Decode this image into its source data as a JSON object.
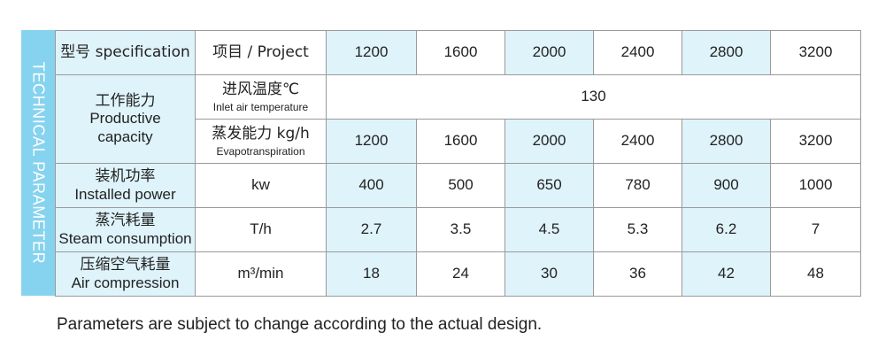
{
  "side_title": "TECHNICAL PARAMETER",
  "header": {
    "spec_label": "型号 specification",
    "project_label": "项目  / Project",
    "models": [
      "1200",
      "1600",
      "2000",
      "2400",
      "2800",
      "3200"
    ]
  },
  "productive": {
    "label_zh": "工作能力",
    "label_en_1": "Productive",
    "label_en_2": "capacity"
  },
  "inlet": {
    "label_zh": "进风温度℃",
    "label_en": "Inlet air temperature",
    "value": "130"
  },
  "evap": {
    "label_zh": "蒸发能力 kg/h",
    "label_en": "Evapotranspiration",
    "values": [
      "1200",
      "1600",
      "2000",
      "2400",
      "2800",
      "3200"
    ]
  },
  "rows": [
    {
      "label_zh": "装机功率",
      "label_en": "Installed power",
      "unit": "kw",
      "values": [
        "400",
        "500",
        "650",
        "780",
        "900",
        "1000"
      ]
    },
    {
      "label_zh": "蒸汽耗量",
      "label_en": "Steam consumption",
      "unit": "T/h",
      "values": [
        "2.7",
        "3.5",
        "4.5",
        "5.3",
        "6.2",
        "7"
      ]
    },
    {
      "label_zh": "压缩空气耗量",
      "label_en": "Air compression",
      "unit": "m³/min",
      "values": [
        "18",
        "24",
        "30",
        "36",
        "42",
        "48"
      ]
    }
  ],
  "colors": {
    "side_bar": "#86d3ef",
    "highlight": "#dff3fb",
    "border": "#9a9a9a"
  },
  "footnote": "Parameters are subject to change according to the actual design."
}
